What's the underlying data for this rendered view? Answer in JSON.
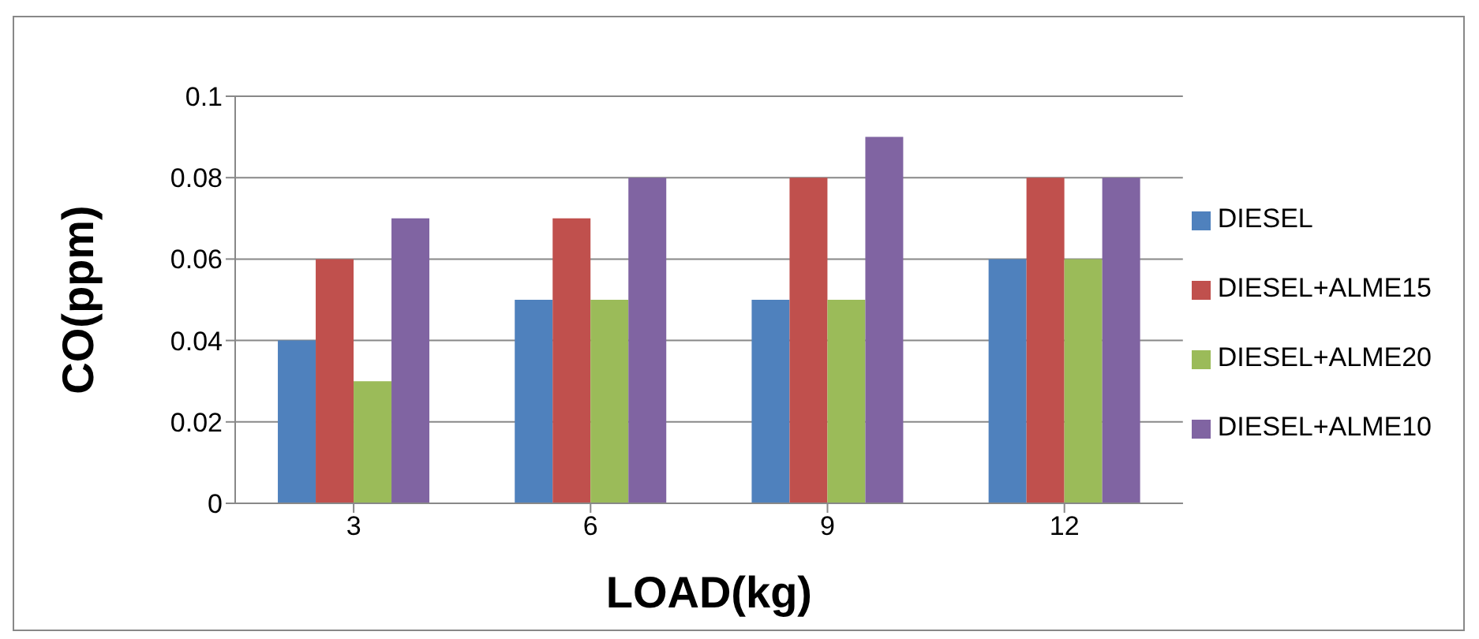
{
  "chart_data": {
    "type": "bar",
    "xlabel": "LOAD(kg)",
    "ylabel": "CO(ppm)",
    "categories": [
      "3",
      "6",
      "9",
      "12"
    ],
    "series": [
      {
        "name": "DIESEL",
        "color": "#4f81bd",
        "values": [
          0.04,
          0.05,
          0.05,
          0.06
        ]
      },
      {
        "name": "DIESEL+ALME15",
        "color": "#c0504d",
        "values": [
          0.06,
          0.07,
          0.08,
          0.08
        ]
      },
      {
        "name": "DIESEL+ALME20",
        "color": "#9bbb59",
        "values": [
          0.03,
          0.05,
          0.05,
          0.06
        ]
      },
      {
        "name": "DIESEL+ALME10",
        "color": "#8064a2",
        "values": [
          0.07,
          0.08,
          0.09,
          0.08
        ]
      }
    ],
    "ylim": [
      0,
      0.1
    ],
    "yticks": [
      0,
      0.02,
      0.04,
      0.06,
      0.08,
      0.1
    ],
    "grid": "y",
    "legend": "right"
  }
}
